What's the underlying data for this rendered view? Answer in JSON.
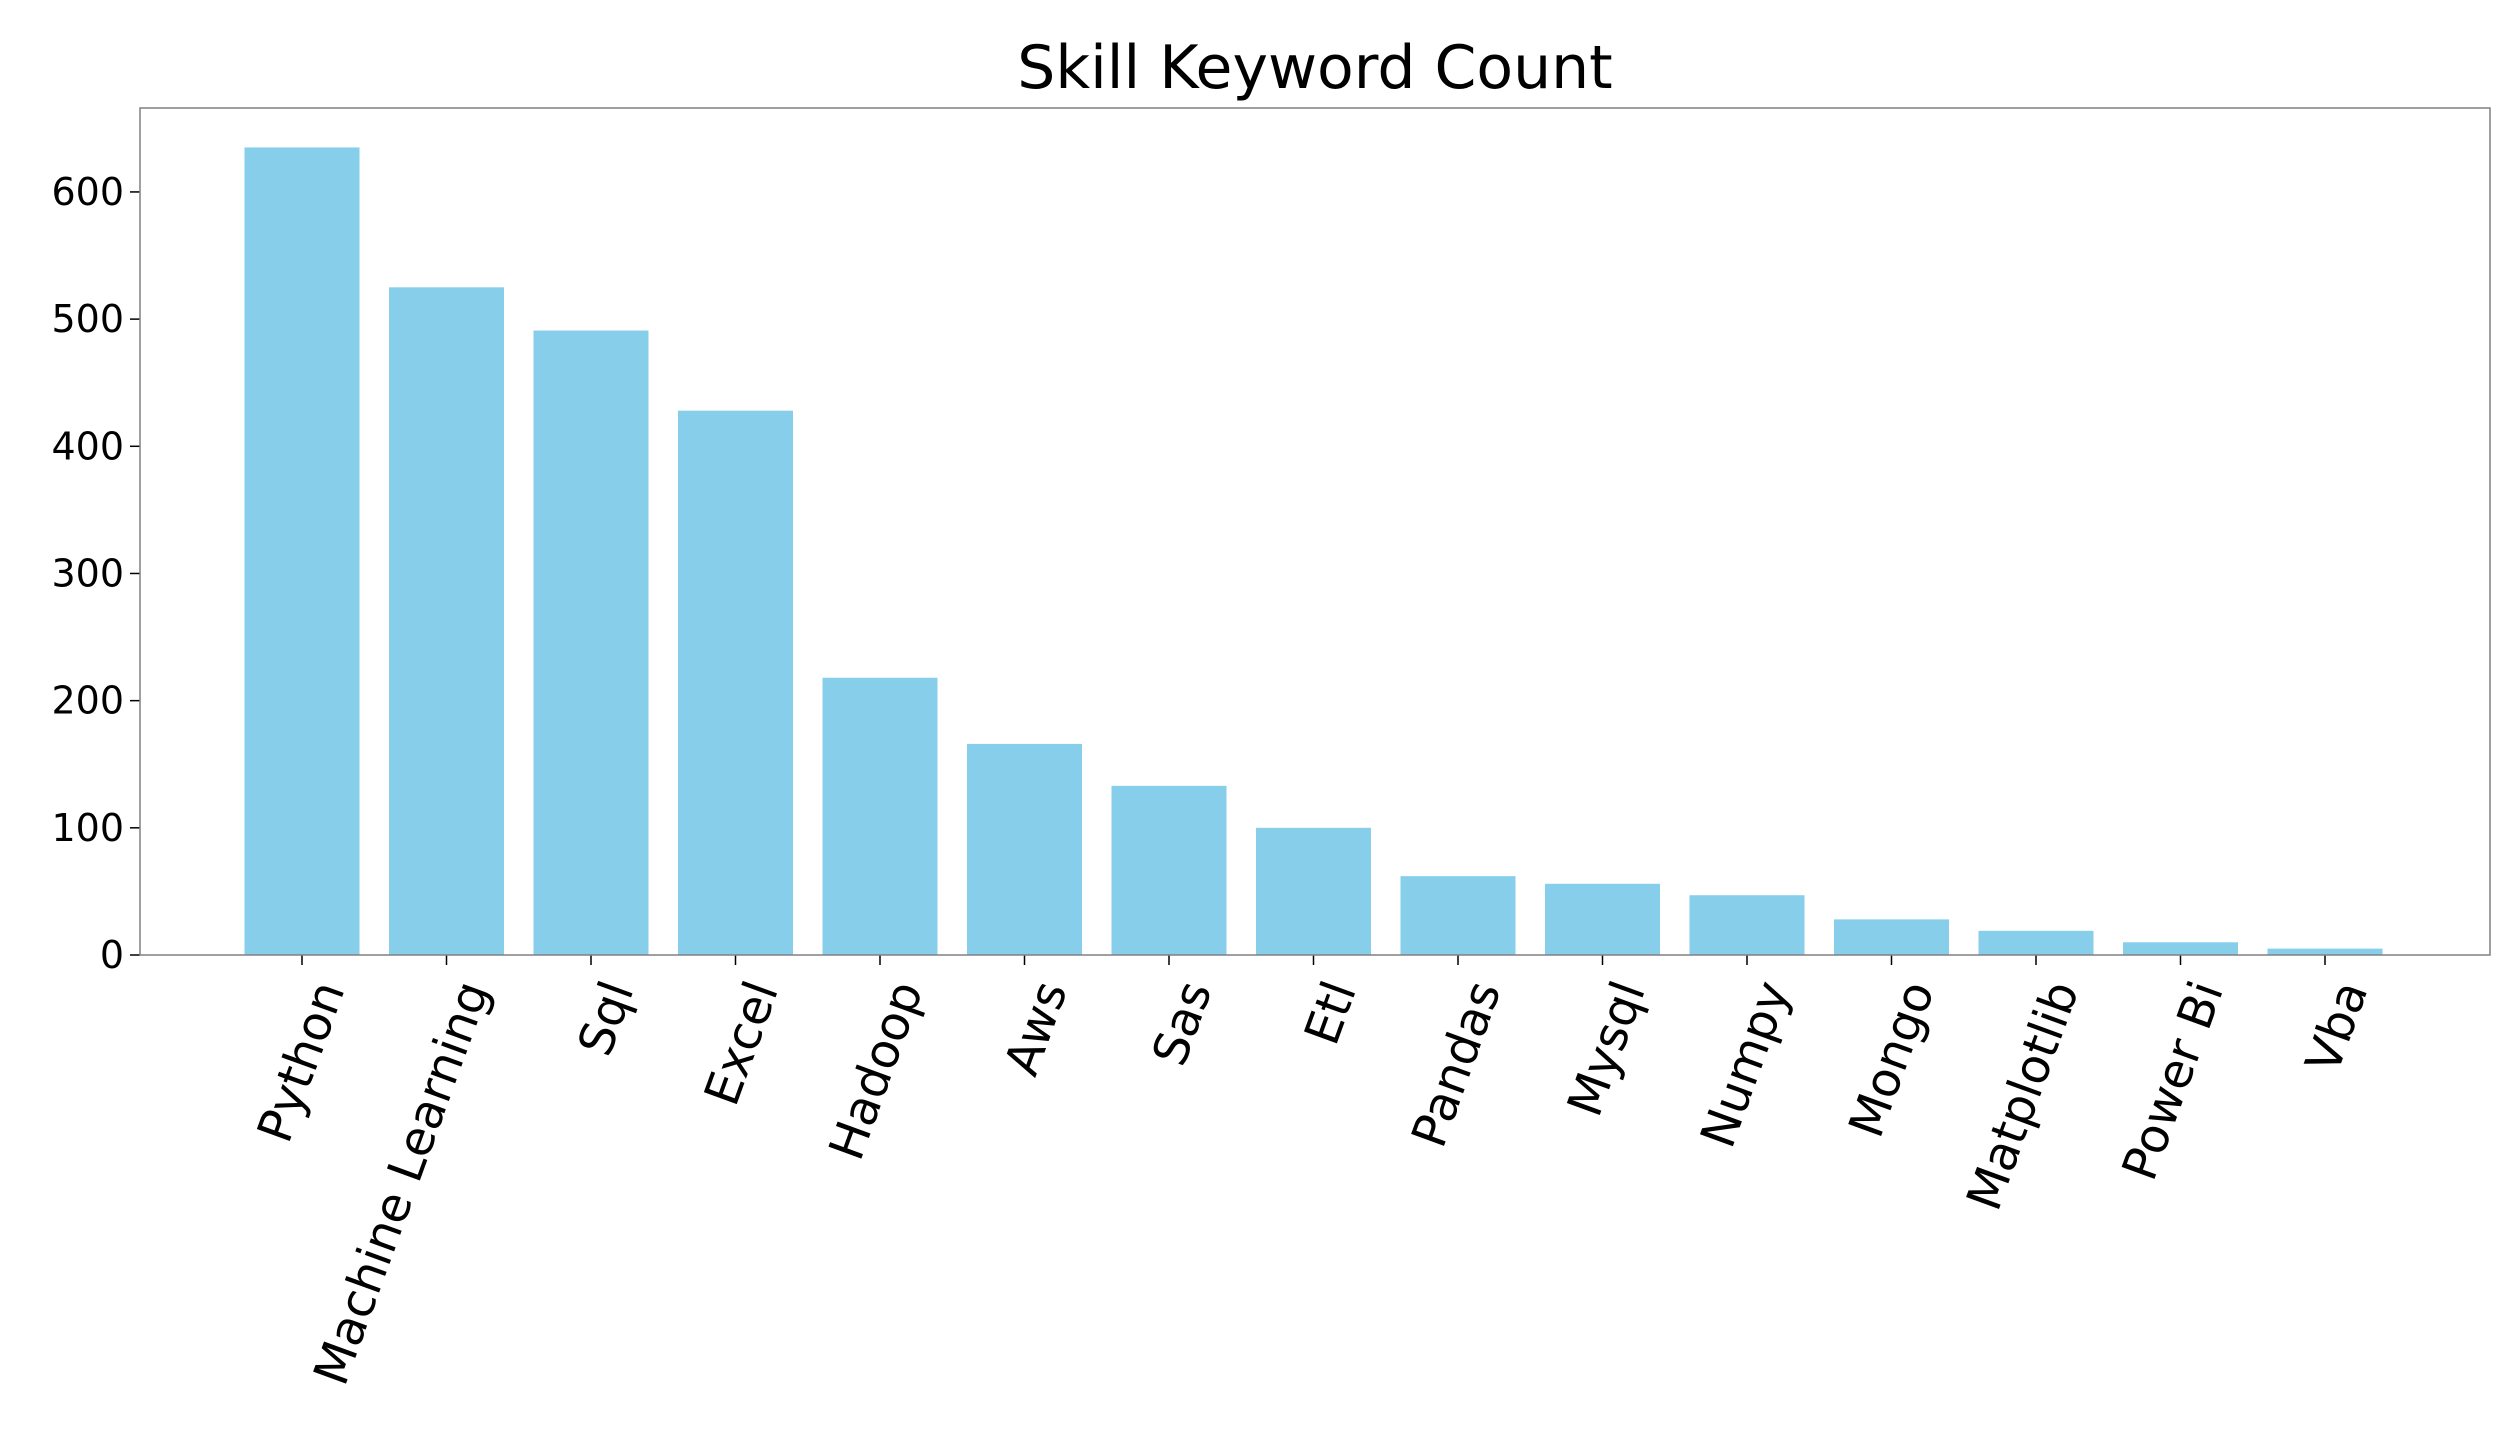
{
  "chart_data": {
    "type": "bar",
    "title": "Skill Keyword Count",
    "xlabel": "",
    "ylabel": "",
    "categories": [
      "Python",
      "Machine Learning",
      "Sql",
      "Excel",
      "Hadoop",
      "Aws",
      "Sas",
      "Etl",
      "Pandas",
      "Mysql",
      "Numpy",
      "Mongo",
      "Matplotlib",
      "Power Bi",
      "Vba"
    ],
    "values": [
      635,
      525,
      491,
      428,
      218,
      166,
      133,
      100,
      62,
      56,
      47,
      28,
      19,
      10,
      5
    ],
    "ylim": [
      0,
      666
    ],
    "yticks": [
      0,
      100,
      200,
      300,
      400,
      500,
      600
    ],
    "grid": false,
    "legend": "none",
    "colors": {
      "bar": "#87ceeb",
      "axes": "#808080",
      "text": "#000000"
    }
  }
}
